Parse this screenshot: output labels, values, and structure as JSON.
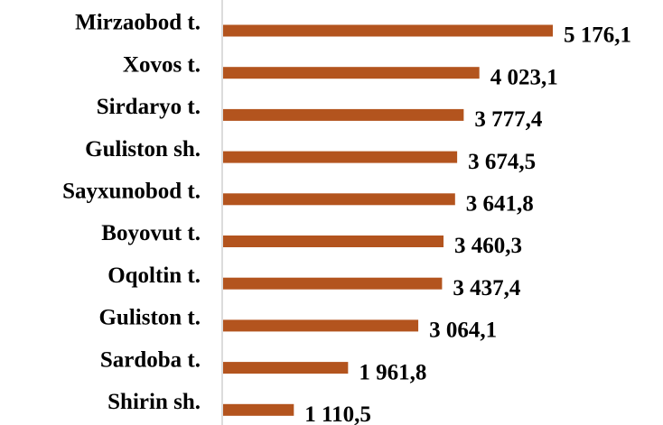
{
  "chart_data": {
    "type": "barh",
    "categories": [
      "Mirzaobod t.",
      "Xovos t.",
      "Sirdaryo t.",
      "Guliston sh.",
      "Sayxunobod t.",
      "Boyovut t.",
      "Oqoltin t.",
      "Guliston t.",
      "Sardoba t.",
      "Shirin sh."
    ],
    "values": [
      5176.1,
      4023.1,
      3777.4,
      3674.5,
      3641.8,
      3460.3,
      3437.4,
      3064.1,
      1961.8,
      1110.5
    ],
    "value_labels": [
      "5 176,1",
      "4 023,1",
      "3 777,4",
      "3 674,5",
      "3 641,8",
      "3 460,3",
      "3 437,4",
      "3 064,1",
      "1 961,8",
      "1 110,5"
    ],
    "color": "#b3541e"
  }
}
